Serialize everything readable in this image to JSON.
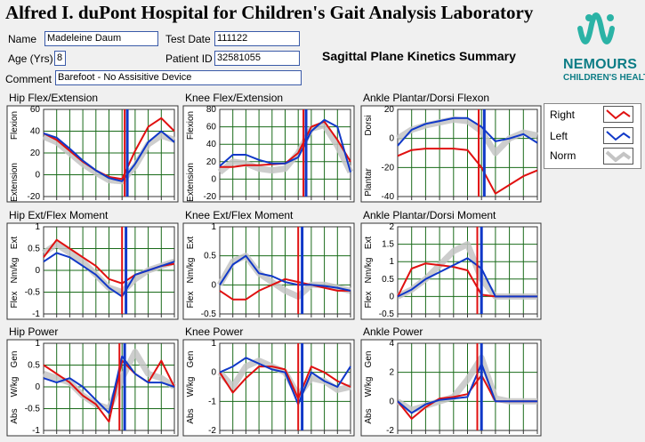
{
  "header": {
    "title": "Alfred I. duPont Hospital for Children's Gait Analysis Laboratory",
    "summary": "Sagittal Plane Kinetics Summary",
    "brand_name": "NEMOURS",
    "brand_sub": "CHILDREN'S HEALTH"
  },
  "patient": {
    "name_label": "Name",
    "name": "Madeleine Daum",
    "test_date_label": "Test Date",
    "test_date": "111122",
    "age_label": "Age (Yrs)",
    "age": "8",
    "patient_id_label": "Patient ID",
    "patient_id": "32581055",
    "comment_label": "Comment",
    "comment": "Barefoot - No Assisitive Device"
  },
  "legend": {
    "items": [
      {
        "label": "Right",
        "color": "#e01010"
      },
      {
        "label": "Left",
        "color": "#1038c8"
      },
      {
        "label": "Norm",
        "color": "#c4c4c4"
      }
    ]
  },
  "colors": {
    "right": "#e01010",
    "left": "#1038c8",
    "norm": "#c4c4c4",
    "grid": "#1a6b1a"
  },
  "chart_data": [
    {
      "type": "line",
      "title": "Hip Flex/Extension",
      "ylabel_top": "Flexion",
      "ylabel_bottom": "Extension",
      "ylim": [
        -20,
        60
      ],
      "yticks": [
        60,
        40,
        20,
        0,
        -20
      ],
      "xlim": [
        0,
        100
      ],
      "toe_off_right": 62,
      "toe_off_left": 64,
      "x": [
        0,
        10,
        20,
        30,
        40,
        50,
        60,
        70,
        80,
        90,
        100
      ],
      "series": [
        {
          "name": "Right",
          "values": [
            38,
            32,
            22,
            12,
            4,
            -2,
            -4,
            22,
            44,
            52,
            40
          ]
        },
        {
          "name": "Left",
          "values": [
            38,
            34,
            24,
            13,
            4,
            -3,
            -6,
            10,
            30,
            40,
            30
          ]
        },
        {
          "name": "Norm",
          "values": [
            35,
            30,
            20,
            10,
            2,
            -5,
            -6,
            8,
            28,
            36,
            32
          ]
        }
      ]
    },
    {
      "type": "line",
      "title": "Knee Flex/Extension",
      "ylabel_top": "Flexion",
      "ylabel_bottom": "Extension",
      "ylim": [
        -20,
        80
      ],
      "yticks": [
        80,
        60,
        40,
        20,
        0,
        -20
      ],
      "xlim": [
        0,
        100
      ],
      "toe_off_right": 64,
      "toe_off_left": 66,
      "x": [
        0,
        10,
        20,
        30,
        40,
        50,
        60,
        70,
        80,
        90,
        100
      ],
      "series": [
        {
          "name": "Right",
          "values": [
            14,
            14,
            16,
            16,
            17,
            18,
            30,
            60,
            66,
            45,
            20
          ]
        },
        {
          "name": "Left",
          "values": [
            15,
            28,
            28,
            22,
            18,
            18,
            25,
            55,
            68,
            60,
            8
          ]
        },
        {
          "name": "Norm",
          "values": [
            8,
            20,
            18,
            12,
            10,
            12,
            30,
            58,
            62,
            38,
            8
          ]
        }
      ]
    },
    {
      "type": "line",
      "title": "Ankle Plantar/Dorsi Flexon",
      "ylabel_top": "Dorsi",
      "ylabel_bottom": "Plantar",
      "ylim": [
        -40,
        20
      ],
      "yticks": [
        20,
        0,
        -20,
        -40
      ],
      "xlim": [
        0,
        100
      ],
      "toe_off_right": 58,
      "toe_off_left": 62,
      "x": [
        0,
        10,
        20,
        30,
        40,
        50,
        60,
        70,
        80,
        90,
        100
      ],
      "series": [
        {
          "name": "Right",
          "values": [
            -12,
            -8,
            -7,
            -7,
            -7,
            -8,
            -20,
            -38,
            -32,
            -26,
            -22
          ]
        },
        {
          "name": "Left",
          "values": [
            -5,
            6,
            10,
            12,
            14,
            14,
            8,
            -2,
            0,
            3,
            -3
          ]
        },
        {
          "name": "Norm",
          "values": [
            0,
            6,
            9,
            11,
            13,
            12,
            5,
            -10,
            0,
            4,
            2
          ]
        }
      ]
    },
    {
      "type": "line",
      "title": "Hip Ext/Flex Moment",
      "ylabel_top": "Ext",
      "ylabel_mid": "Nm/kg",
      "ylabel_bottom": "Flex",
      "ylim": [
        -1,
        1
      ],
      "yticks": [
        1,
        0.5,
        0,
        -0.5,
        -1
      ],
      "xlim": [
        0,
        100
      ],
      "toe_off_right": 60,
      "toe_off_left": 63,
      "x": [
        0,
        10,
        20,
        30,
        40,
        50,
        60,
        70,
        80,
        90,
        100
      ],
      "series": [
        {
          "name": "Right",
          "values": [
            0.3,
            0.7,
            0.5,
            0.3,
            0.1,
            -0.2,
            -0.3,
            -0.1,
            0,
            0.1,
            0.15
          ]
        },
        {
          "name": "Left",
          "values": [
            0.2,
            0.4,
            0.3,
            0.1,
            -0.1,
            -0.4,
            -0.6,
            -0.1,
            0,
            0.1,
            0.2
          ]
        },
        {
          "name": "Norm",
          "values": [
            0.4,
            0.6,
            0.4,
            0.2,
            -0.1,
            -0.4,
            -0.5,
            -0.2,
            0,
            0.1,
            0.2
          ]
        }
      ]
    },
    {
      "type": "line",
      "title": "Knee Ext/Flex Moment",
      "ylabel_top": "Ext",
      "ylabel_mid": "Nm/kg",
      "ylabel_bottom": "Flex",
      "ylim": [
        -0.5,
        1
      ],
      "yticks": [
        1,
        0.5,
        0,
        -0.5
      ],
      "xlim": [
        0,
        100
      ],
      "toe_off_right": 60,
      "toe_off_left": 63,
      "x": [
        0,
        10,
        20,
        30,
        40,
        50,
        60,
        70,
        80,
        90,
        100
      ],
      "series": [
        {
          "name": "Right",
          "values": [
            -0.1,
            -0.25,
            -0.25,
            -0.1,
            0,
            0.1,
            0.05,
            0,
            -0.05,
            -0.1,
            -0.1
          ]
        },
        {
          "name": "Left",
          "values": [
            0,
            0.35,
            0.5,
            0.2,
            0.15,
            0.05,
            0,
            0,
            -0.02,
            -0.05,
            -0.1
          ]
        },
        {
          "name": "Norm",
          "values": [
            0,
            0.4,
            0.5,
            0.2,
            0.05,
            -0.1,
            -0.2,
            0,
            0,
            -0.05,
            -0.1
          ]
        }
      ]
    },
    {
      "type": "line",
      "title": "Ankle Plantar/Dorsi Moment",
      "ylabel_top": "Ext",
      "ylabel_mid": "Nm/kg",
      "ylabel_bottom": "Flex",
      "ylim": [
        -0.5,
        2
      ],
      "yticks": [
        2,
        1.5,
        1,
        0.5,
        0,
        -0.5
      ],
      "xlim": [
        0,
        100
      ],
      "toe_off_right": 57,
      "toe_off_left": 60,
      "x": [
        0,
        10,
        20,
        30,
        40,
        50,
        60,
        70,
        80,
        90,
        100
      ],
      "series": [
        {
          "name": "Right",
          "values": [
            0,
            0.8,
            0.95,
            0.9,
            0.85,
            0.75,
            0.05,
            0,
            0,
            0,
            0
          ]
        },
        {
          "name": "Left",
          "values": [
            0,
            0.2,
            0.5,
            0.7,
            0.9,
            1.1,
            0.8,
            0,
            0,
            0,
            0
          ]
        },
        {
          "name": "Norm",
          "values": [
            0,
            0.2,
            0.5,
            0.9,
            1.3,
            1.5,
            0.5,
            0,
            0,
            0,
            0
          ]
        }
      ]
    },
    {
      "type": "line",
      "title": "Hip Power",
      "ylabel_top": "Gen",
      "ylabel_mid": "W/kg",
      "ylabel_bottom": "Abs",
      "ylim": [
        -1,
        1
      ],
      "yticks": [
        1,
        0.5,
        0,
        -0.5,
        -1
      ],
      "xlim": [
        0,
        100
      ],
      "toe_off_right": 58,
      "toe_off_left": 62,
      "x": [
        0,
        10,
        20,
        30,
        40,
        50,
        60,
        70,
        80,
        90,
        100
      ],
      "series": [
        {
          "name": "Right",
          "values": [
            0.5,
            0.3,
            0.1,
            -0.2,
            -0.4,
            -0.8,
            0.6,
            0.3,
            0.1,
            0.6,
            0
          ]
        },
        {
          "name": "Left",
          "values": [
            0.2,
            0.1,
            0.2,
            0,
            -0.3,
            -0.6,
            0.7,
            0.3,
            0.1,
            0.1,
            0
          ]
        },
        {
          "name": "Norm",
          "values": [
            0.3,
            0.2,
            0.1,
            -0.2,
            -0.4,
            -0.5,
            0.2,
            0.8,
            0.3,
            0.2,
            0
          ]
        }
      ]
    },
    {
      "type": "line",
      "title": "Knee Power",
      "ylabel_top": "Gen",
      "ylabel_mid": "W/kg",
      "ylabel_bottom": "Abs",
      "ylim": [
        -2,
        1
      ],
      "yticks": [
        1,
        0,
        -1,
        -2
      ],
      "xlim": [
        0,
        100
      ],
      "toe_off_right": 60,
      "toe_off_left": 63,
      "x": [
        0,
        10,
        20,
        30,
        40,
        50,
        60,
        70,
        80,
        90,
        100
      ],
      "series": [
        {
          "name": "Right",
          "values": [
            0,
            -0.7,
            -0.2,
            0.2,
            0.2,
            0.1,
            -0.9,
            0.2,
            0,
            -0.3,
            -0.5
          ]
        },
        {
          "name": "Left",
          "values": [
            0,
            0.2,
            0.5,
            0.3,
            0.1,
            0,
            -1.1,
            0,
            -0.3,
            -0.5,
            0.2
          ]
        },
        {
          "name": "Norm",
          "values": [
            0,
            -0.5,
            0.2,
            0.4,
            0.2,
            0,
            -0.8,
            -0.2,
            -0.3,
            -0.6,
            -0.5
          ]
        }
      ]
    },
    {
      "type": "line",
      "title": "Ankle Power",
      "ylabel_top": "Gen",
      "ylabel_mid": "W/kg",
      "ylabel_bottom": "Abs",
      "ylim": [
        -2,
        4
      ],
      "yticks": [
        4,
        2,
        0,
        -2
      ],
      "xlim": [
        0,
        100
      ],
      "toe_off_right": 57,
      "toe_off_left": 60,
      "x": [
        0,
        10,
        20,
        30,
        40,
        50,
        60,
        70,
        80,
        90,
        100
      ],
      "series": [
        {
          "name": "Right",
          "values": [
            0,
            -1.2,
            -0.4,
            0.2,
            0.3,
            0.5,
            1.8,
            0,
            0,
            0,
            0
          ]
        },
        {
          "name": "Left",
          "values": [
            0,
            -0.8,
            -0.2,
            0.1,
            0.2,
            0.3,
            2.6,
            0,
            0,
            0,
            0
          ]
        },
        {
          "name": "Norm",
          "values": [
            0,
            -0.6,
            -0.3,
            0,
            0.3,
            1.5,
            3,
            0.2,
            0,
            0,
            0
          ]
        }
      ]
    }
  ]
}
